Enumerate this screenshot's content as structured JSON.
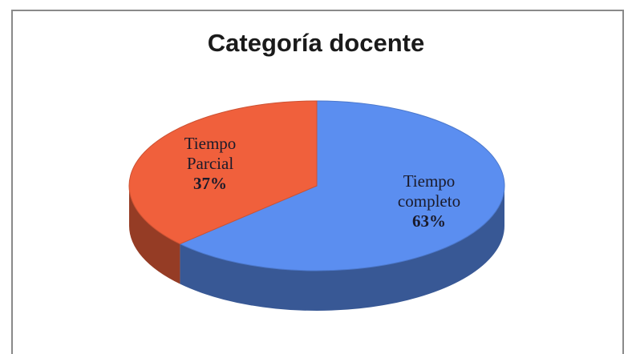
{
  "chart_data": {
    "type": "pie",
    "title": "Categoría docente",
    "categories": [
      "Tiempo Parcial",
      "Tiempo completo"
    ],
    "values": [
      37,
      63
    ],
    "value_labels": [
      "37%",
      "63%"
    ],
    "colors": [
      "#f0603c",
      "#5b8ef0"
    ]
  }
}
